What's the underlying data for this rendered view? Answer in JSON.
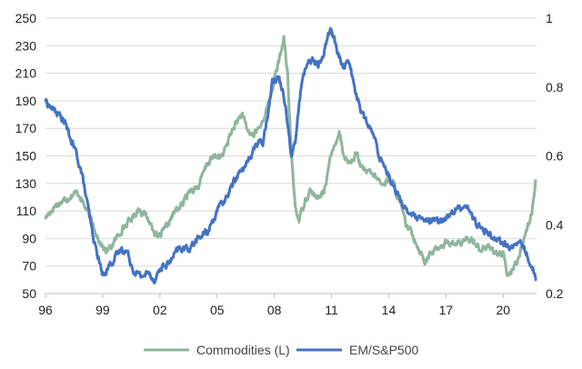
{
  "chart_data": {
    "type": "line",
    "title": "",
    "xlabel": "",
    "ylabel": "",
    "grid": "horizontal",
    "legend_position": "bottom",
    "x_range": [
      1996.0,
      2021.75
    ],
    "x_ticks": [
      {
        "value": 1996,
        "label": "96"
      },
      {
        "value": 1999,
        "label": "99"
      },
      {
        "value": 2002,
        "label": "02"
      },
      {
        "value": 2005,
        "label": "05"
      },
      {
        "value": 2008,
        "label": "08"
      },
      {
        "value": 2011,
        "label": "11"
      },
      {
        "value": 2014,
        "label": "14"
      },
      {
        "value": 2017,
        "label": "17"
      },
      {
        "value": 2020,
        "label": "20"
      }
    ],
    "y_left": {
      "range": [
        50,
        250
      ],
      "ticks": [
        "50",
        "70",
        "90",
        "110",
        "130",
        "150",
        "170",
        "190",
        "210",
        "230",
        "250"
      ]
    },
    "y_right": {
      "range": [
        0.2,
        1.0
      ],
      "ticks": [
        "0.2",
        "0.4",
        "0.6",
        "0.8",
        "1"
      ]
    },
    "series": [
      {
        "name": "Commodities (L)",
        "axis": "left",
        "color": "#8fb59f",
        "points": [
          [
            1996.0,
            105
          ],
          [
            1996.5,
            114
          ],
          [
            1997.0,
            118
          ],
          [
            1997.5,
            123
          ],
          [
            1997.8,
            122
          ],
          [
            1998.0,
            115
          ],
          [
            1998.5,
            100
          ],
          [
            1998.9,
            86
          ],
          [
            1999.2,
            80
          ],
          [
            1999.6,
            87
          ],
          [
            2000.0,
            97
          ],
          [
            2000.5,
            104
          ],
          [
            2000.9,
            112
          ],
          [
            2001.3,
            106
          ],
          [
            2001.7,
            96
          ],
          [
            2001.9,
            90
          ],
          [
            2002.3,
            97
          ],
          [
            2002.8,
            110
          ],
          [
            2003.2,
            115
          ],
          [
            2003.6,
            126
          ],
          [
            2004.0,
            127
          ],
          [
            2004.5,
            145
          ],
          [
            2004.9,
            150
          ],
          [
            2005.3,
            150
          ],
          [
            2005.6,
            162
          ],
          [
            2005.9,
            172
          ],
          [
            2006.3,
            180
          ],
          [
            2006.6,
            168
          ],
          [
            2006.9,
            165
          ],
          [
            2007.3,
            172
          ],
          [
            2007.7,
            188
          ],
          [
            2008.0,
            205
          ],
          [
            2008.3,
            222
          ],
          [
            2008.5,
            236
          ],
          [
            2008.7,
            208
          ],
          [
            2008.9,
            150
          ],
          [
            2009.1,
            113
          ],
          [
            2009.3,
            103
          ],
          [
            2009.6,
            118
          ],
          [
            2009.9,
            125
          ],
          [
            2010.3,
            118
          ],
          [
            2010.6,
            125
          ],
          [
            2010.9,
            145
          ],
          [
            2011.2,
            160
          ],
          [
            2011.4,
            168
          ],
          [
            2011.7,
            148
          ],
          [
            2012.0,
            145
          ],
          [
            2012.3,
            152
          ],
          [
            2012.6,
            140
          ],
          [
            2012.9,
            138
          ],
          [
            2013.3,
            135
          ],
          [
            2013.7,
            128
          ],
          [
            2014.0,
            135
          ],
          [
            2014.3,
            128
          ],
          [
            2014.6,
            115
          ],
          [
            2014.9,
            100
          ],
          [
            2015.3,
            92
          ],
          [
            2015.6,
            82
          ],
          [
            2015.9,
            74
          ],
          [
            2016.3,
            80
          ],
          [
            2016.7,
            85
          ],
          [
            2017.0,
            87
          ],
          [
            2017.5,
            86
          ],
          [
            2018.0,
            88
          ],
          [
            2018.4,
            90
          ],
          [
            2018.8,
            82
          ],
          [
            2019.2,
            84
          ],
          [
            2019.6,
            80
          ],
          [
            2020.0,
            78
          ],
          [
            2020.25,
            62
          ],
          [
            2020.6,
            70
          ],
          [
            2020.9,
            80
          ],
          [
            2021.2,
            96
          ],
          [
            2021.5,
            108
          ],
          [
            2021.7,
            133
          ]
        ]
      },
      {
        "name": "EM/S&P500",
        "axis": "right",
        "color": "#4472c4",
        "points": [
          [
            1996.0,
            0.76
          ],
          [
            1996.3,
            0.74
          ],
          [
            1996.7,
            0.72
          ],
          [
            1997.0,
            0.7
          ],
          [
            1997.3,
            0.65
          ],
          [
            1997.6,
            0.61
          ],
          [
            1997.9,
            0.55
          ],
          [
            1998.2,
            0.46
          ],
          [
            1998.5,
            0.36
          ],
          [
            1998.8,
            0.3
          ],
          [
            1999.0,
            0.25
          ],
          [
            1999.3,
            0.28
          ],
          [
            1999.6,
            0.3
          ],
          [
            2000.0,
            0.33
          ],
          [
            2000.3,
            0.32
          ],
          [
            2000.6,
            0.27
          ],
          [
            2001.0,
            0.25
          ],
          [
            2001.4,
            0.26
          ],
          [
            2001.7,
            0.24
          ],
          [
            2002.0,
            0.27
          ],
          [
            2002.5,
            0.29
          ],
          [
            2003.0,
            0.33
          ],
          [
            2003.5,
            0.33
          ],
          [
            2004.0,
            0.36
          ],
          [
            2004.5,
            0.38
          ],
          [
            2005.0,
            0.44
          ],
          [
            2005.5,
            0.48
          ],
          [
            2006.0,
            0.54
          ],
          [
            2006.5,
            0.57
          ],
          [
            2007.0,
            0.63
          ],
          [
            2007.4,
            0.64
          ],
          [
            2007.7,
            0.74
          ],
          [
            2007.9,
            0.82
          ],
          [
            2008.2,
            0.83
          ],
          [
            2008.5,
            0.78
          ],
          [
            2008.7,
            0.7
          ],
          [
            2008.9,
            0.6
          ],
          [
            2009.1,
            0.64
          ],
          [
            2009.4,
            0.8
          ],
          [
            2009.7,
            0.87
          ],
          [
            2010.0,
            0.88
          ],
          [
            2010.3,
            0.86
          ],
          [
            2010.6,
            0.9
          ],
          [
            2010.8,
            0.95
          ],
          [
            2011.0,
            0.97
          ],
          [
            2011.3,
            0.9
          ],
          [
            2011.6,
            0.86
          ],
          [
            2011.9,
            0.88
          ],
          [
            2012.2,
            0.8
          ],
          [
            2012.5,
            0.74
          ],
          [
            2012.8,
            0.7
          ],
          [
            2013.2,
            0.66
          ],
          [
            2013.5,
            0.6
          ],
          [
            2013.8,
            0.57
          ],
          [
            2014.2,
            0.52
          ],
          [
            2014.6,
            0.47
          ],
          [
            2015.0,
            0.44
          ],
          [
            2015.4,
            0.42
          ],
          [
            2015.8,
            0.41
          ],
          [
            2016.2,
            0.41
          ],
          [
            2016.6,
            0.41
          ],
          [
            2017.0,
            0.42
          ],
          [
            2017.4,
            0.44
          ],
          [
            2017.8,
            0.45
          ],
          [
            2018.1,
            0.46
          ],
          [
            2018.4,
            0.42
          ],
          [
            2018.8,
            0.39
          ],
          [
            2019.2,
            0.38
          ],
          [
            2019.6,
            0.36
          ],
          [
            2020.0,
            0.35
          ],
          [
            2020.3,
            0.33
          ],
          [
            2020.6,
            0.34
          ],
          [
            2020.9,
            0.35
          ],
          [
            2021.2,
            0.32
          ],
          [
            2021.5,
            0.28
          ],
          [
            2021.75,
            0.24
          ]
        ]
      }
    ]
  }
}
